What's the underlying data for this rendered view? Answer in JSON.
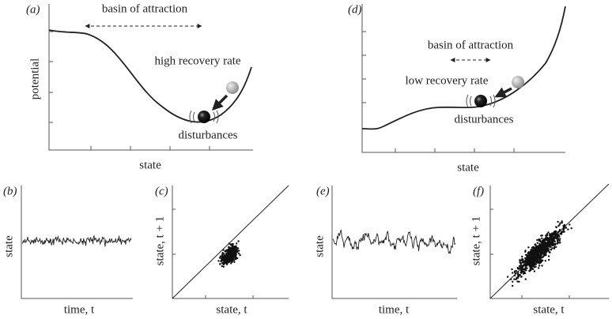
{
  "panels": {
    "a": {
      "label": "(a)",
      "basin": "basin of attraction",
      "rate": "high recovery rate",
      "disturbances": "disturbances",
      "xlabel": "state",
      "ylabel": "potential"
    },
    "b": {
      "label": "(b)",
      "xlabel": "time, t",
      "ylabel": "state"
    },
    "c": {
      "label": "(c)",
      "xlabel": "state, t",
      "ylabel": "state, t + 1"
    },
    "d": {
      "label": "(d)",
      "basin": "basin of attraction",
      "rate": "low recovery rate",
      "disturbances": "disturbances",
      "xlabel": "state"
    },
    "e": {
      "label": "(e)",
      "xlabel": "time, t",
      "ylabel": "state"
    },
    "f": {
      "label": "(f)",
      "xlabel": "state, t",
      "ylabel": "state, t + 1"
    }
  }
}
